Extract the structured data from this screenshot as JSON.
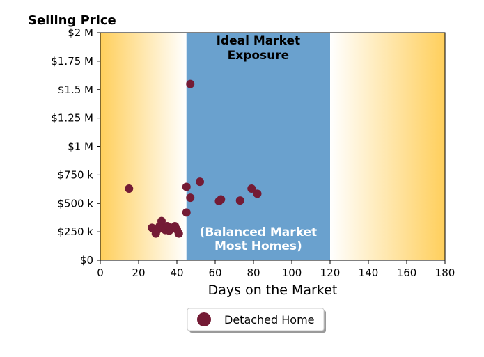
{
  "chart_data": {
    "type": "scatter",
    "ylabel": "Selling Price",
    "xlabel": "Days on the Market",
    "xlim": [
      0,
      180
    ],
    "ylim": [
      0,
      2000000
    ],
    "x_ticks": [
      0,
      20,
      40,
      60,
      80,
      100,
      120,
      140,
      160,
      180
    ],
    "x_tick_labels": [
      "0",
      "20",
      "40",
      "60",
      "80",
      "100",
      "120",
      "140",
      "160",
      "180"
    ],
    "y_ticks": [
      0,
      250000,
      500000,
      750000,
      1000000,
      1250000,
      1500000,
      1750000,
      2000000
    ],
    "y_tick_labels": [
      "$0",
      "$250 k",
      "$500 k",
      "$750 k",
      "$1 M",
      "$1.25 M",
      "$1.5 M",
      "$1.75 M",
      "$2 M"
    ],
    "grid": false,
    "legend_position": "bottom-center",
    "regions": [
      {
        "label": "Ideal Market Exposure",
        "x_range": [
          45,
          120
        ],
        "color": "#6aa1ce"
      }
    ],
    "annotations": [
      {
        "text": "Ideal Market\nExposure",
        "position": "top-center of region"
      },
      {
        "text": "(Balanced Market\nMost Homes)",
        "position": "bottom-center of region"
      }
    ],
    "background_gradient": {
      "edge_color": "#ffcf5c",
      "center_color": "#ffffff"
    },
    "series": [
      {
        "name": "Detached Home",
        "color": "#741b35",
        "points": [
          {
            "x": 15,
            "y": 630000
          },
          {
            "x": 27,
            "y": 285000
          },
          {
            "x": 29,
            "y": 235000
          },
          {
            "x": 30,
            "y": 270000
          },
          {
            "x": 31,
            "y": 300000
          },
          {
            "x": 32,
            "y": 345000
          },
          {
            "x": 33,
            "y": 280000
          },
          {
            "x": 34,
            "y": 265000
          },
          {
            "x": 35,
            "y": 300000
          },
          {
            "x": 36,
            "y": 260000
          },
          {
            "x": 37,
            "y": 280000
          },
          {
            "x": 39,
            "y": 300000
          },
          {
            "x": 40,
            "y": 270000
          },
          {
            "x": 41,
            "y": 235000
          },
          {
            "x": 45,
            "y": 420000
          },
          {
            "x": 45,
            "y": 645000
          },
          {
            "x": 47,
            "y": 1550000
          },
          {
            "x": 47,
            "y": 550000
          },
          {
            "x": 52,
            "y": 690000
          },
          {
            "x": 62,
            "y": 520000
          },
          {
            "x": 63,
            "y": 535000
          },
          {
            "x": 73,
            "y": 525000
          },
          {
            "x": 79,
            "y": 630000
          },
          {
            "x": 82,
            "y": 585000
          }
        ]
      }
    ]
  }
}
